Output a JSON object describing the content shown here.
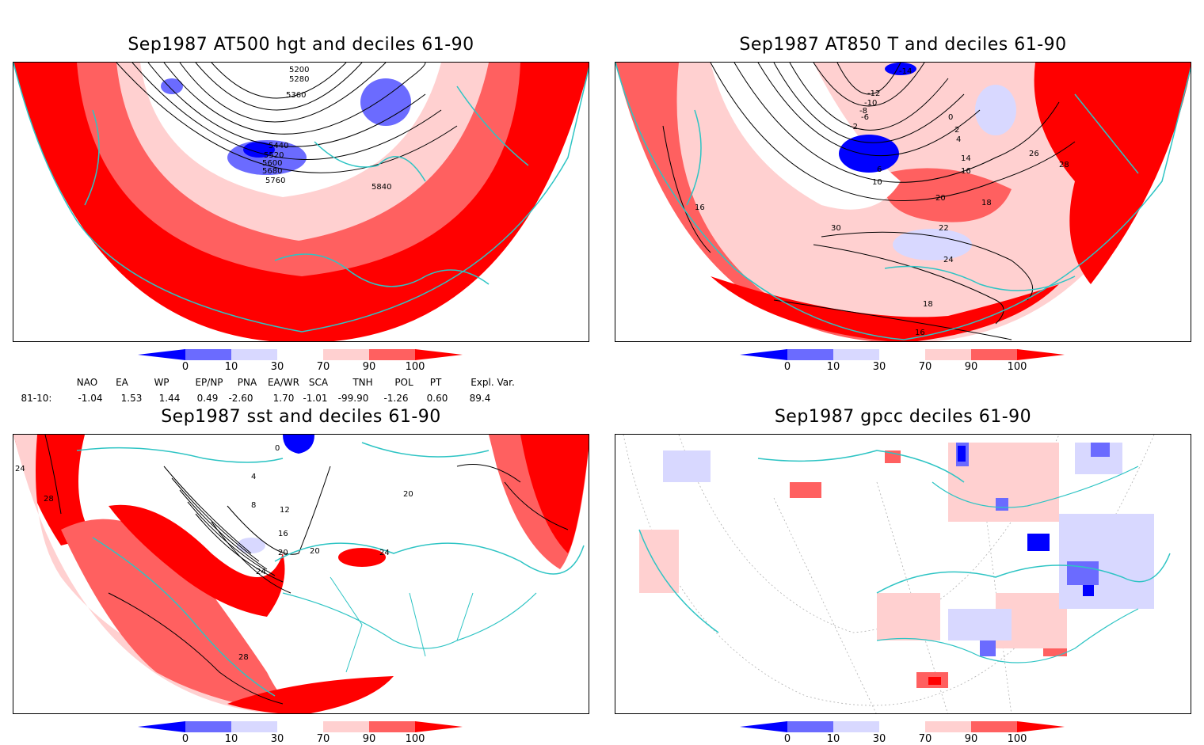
{
  "panels": [
    {
      "title": "Sep1987 AT500 hgt and deciles 61-90",
      "contour_labels": [
        "5200",
        "5280",
        "5360",
        "5440",
        "5520",
        "5600",
        "5680",
        "5760",
        "5840"
      ]
    },
    {
      "title": "Sep1987 AT850 T and deciles 61-90",
      "contour_labels": [
        "-14",
        "-12",
        "-10",
        "-8",
        "-6",
        "-2",
        "0",
        "2",
        "4",
        "6",
        "10",
        "14",
        "16",
        "18",
        "20",
        "22",
        "24",
        "26",
        "28",
        "30",
        "16",
        "18",
        "16"
      ]
    },
    {
      "title": "Sep1987 sst and deciles 61-90",
      "contour_labels": [
        "0",
        "4",
        "8",
        "12",
        "16",
        "20",
        "20",
        "24",
        "24",
        "28",
        "24",
        "28",
        "20"
      ]
    },
    {
      "title": "Sep1987 gpcc deciles 61-90",
      "contour_labels": []
    }
  ],
  "colorbar": {
    "ticks": [
      "0",
      "10",
      "30",
      "70",
      "90",
      "100"
    ],
    "colors": [
      "#0000ff",
      "#6b6bff",
      "#d8d8ff",
      "#ffffff",
      "#ffd0d0",
      "#ff6060",
      "#ff0000"
    ]
  },
  "indices": {
    "row_label": "81-10:",
    "names": [
      "NAO",
      "EA",
      "WP",
      "EP/NP",
      "PNA",
      "EA/WR",
      "SCA",
      "TNH",
      "POL",
      "PT",
      "Expl. Var."
    ],
    "values": [
      "-1.04",
      "1.53",
      "1.44",
      "0.49",
      "-2.60",
      "1.70",
      "-1.01",
      "-99.90",
      "-1.26",
      "0.60",
      "89.4"
    ]
  },
  "colors": {
    "coast": "#2ec4c4",
    "high": "#ff0000",
    "low": "#0000ff"
  }
}
